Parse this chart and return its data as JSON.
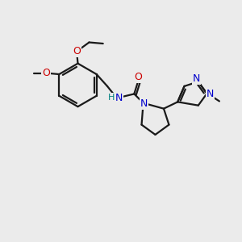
{
  "background_color": "#ebebeb",
  "atom_color_N": "#0000cc",
  "atom_color_O": "#cc0000",
  "atom_color_H": "#008080",
  "bond_color": "#1a1a1a",
  "bond_width": 1.6,
  "figsize": [
    3.0,
    3.0
  ],
  "dpi": 100,
  "xlim": [
    0,
    10
  ],
  "ylim": [
    0,
    10
  ]
}
